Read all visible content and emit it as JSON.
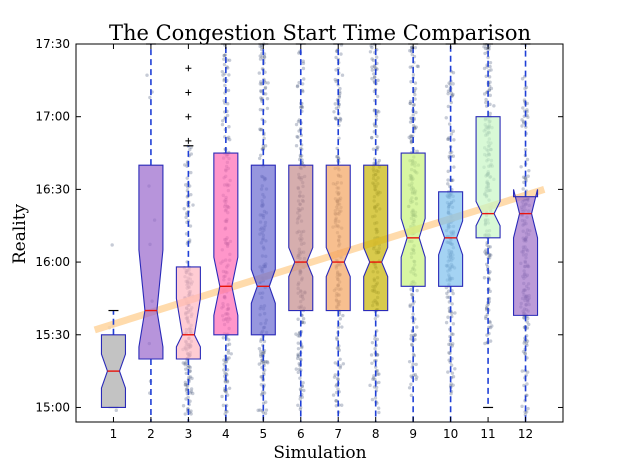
{
  "chart_data": {
    "type": "box",
    "title": "The Congestion Start Time Comparison",
    "xlabel": "Simulation",
    "ylabel": "Reality",
    "categories": [
      "1",
      "2",
      "3",
      "4",
      "5",
      "6",
      "7",
      "8",
      "9",
      "10",
      "11",
      "12"
    ],
    "y_unit": "minutes since midnight",
    "ylim": [
      894,
      1050
    ],
    "y_ticks": [
      {
        "value": 900,
        "label": "15:00"
      },
      {
        "value": 930,
        "label": "15:30"
      },
      {
        "value": 960,
        "label": "16:00"
      },
      {
        "value": 990,
        "label": "16:30"
      },
      {
        "value": 1020,
        "label": "17:00"
      },
      {
        "value": 1050,
        "label": "17:30"
      }
    ],
    "grid": false,
    "boxes": [
      {
        "category": "1",
        "q1": 900,
        "median": 915,
        "q3": 930,
        "whisker_low": 900,
        "whisker_high": 940,
        "notch_low": 908,
        "notch_high": 922,
        "color": "#a9a9a9",
        "outliers": []
      },
      {
        "category": "2",
        "q1": 920,
        "median": 940,
        "q3": 1000,
        "whisker_low": 880,
        "whisker_high": 1050,
        "notch_low": 925,
        "notch_high": 965,
        "color": "#9966cc",
        "outliers": []
      },
      {
        "category": "3",
        "q1": 920,
        "median": 930,
        "q3": 958,
        "whisker_low": 880,
        "whisker_high": 1008,
        "notch_low": 925,
        "notch_high": 945,
        "color": "#ffb6c1",
        "outliers": [
          1010,
          1020,
          1030,
          1040
        ]
      },
      {
        "category": "4",
        "q1": 930,
        "median": 950,
        "q3": 1005,
        "whisker_low": 880,
        "whisker_high": 1050,
        "notch_low": 938,
        "notch_high": 962,
        "color": "#ff69b4",
        "outliers": []
      },
      {
        "category": "5",
        "q1": 930,
        "median": 950,
        "q3": 1000,
        "whisker_low": 880,
        "whisker_high": 1050,
        "notch_low": 943,
        "notch_high": 957,
        "color": "#6a6ad0",
        "outliers": []
      },
      {
        "category": "6",
        "q1": 940,
        "median": 960,
        "q3": 1000,
        "whisker_low": 880,
        "whisker_high": 1050,
        "notch_low": 954,
        "notch_high": 966,
        "color": "#c58b8b",
        "outliers": []
      },
      {
        "category": "7",
        "q1": 940,
        "median": 960,
        "q3": 1000,
        "whisker_low": 880,
        "whisker_high": 1050,
        "notch_low": 954,
        "notch_high": 966,
        "color": "#f4a460",
        "outliers": []
      },
      {
        "category": "8",
        "q1": 940,
        "median": 960,
        "q3": 1000,
        "whisker_low": 880,
        "whisker_high": 1050,
        "notch_low": 954,
        "notch_high": 966,
        "color": "#c8b400",
        "outliers": []
      },
      {
        "category": "9",
        "q1": 950,
        "median": 970,
        "q3": 1005,
        "whisker_low": 880,
        "whisker_high": 1050,
        "notch_low": 962,
        "notch_high": 978,
        "color": "#c7f27a",
        "outliers": []
      },
      {
        "category": "10",
        "q1": 950,
        "median": 970,
        "q3": 989,
        "whisker_low": 880,
        "whisker_high": 1050,
        "notch_low": 963,
        "notch_high": 977,
        "color": "#7ec0ee",
        "outliers": []
      },
      {
        "category": "11",
        "q1": 970,
        "median": 980,
        "q3": 1020,
        "whisker_low": 900,
        "whisker_high": 1050,
        "notch_low": 975,
        "notch_high": 985,
        "color": "#c8f7c5",
        "outliers": []
      },
      {
        "category": "12",
        "q1": 938,
        "median": 980,
        "q3": 987,
        "whisker_low": 880,
        "whisker_high": 1050,
        "notch_low": 970,
        "notch_high": 990,
        "color": "#a070c8",
        "outliers": []
      }
    ],
    "trend_line": {
      "color": "#ffd59e",
      "y_at_x0_5": 932,
      "y_at_x12_5": 990
    },
    "points_color": "#5c6b8a"
  }
}
